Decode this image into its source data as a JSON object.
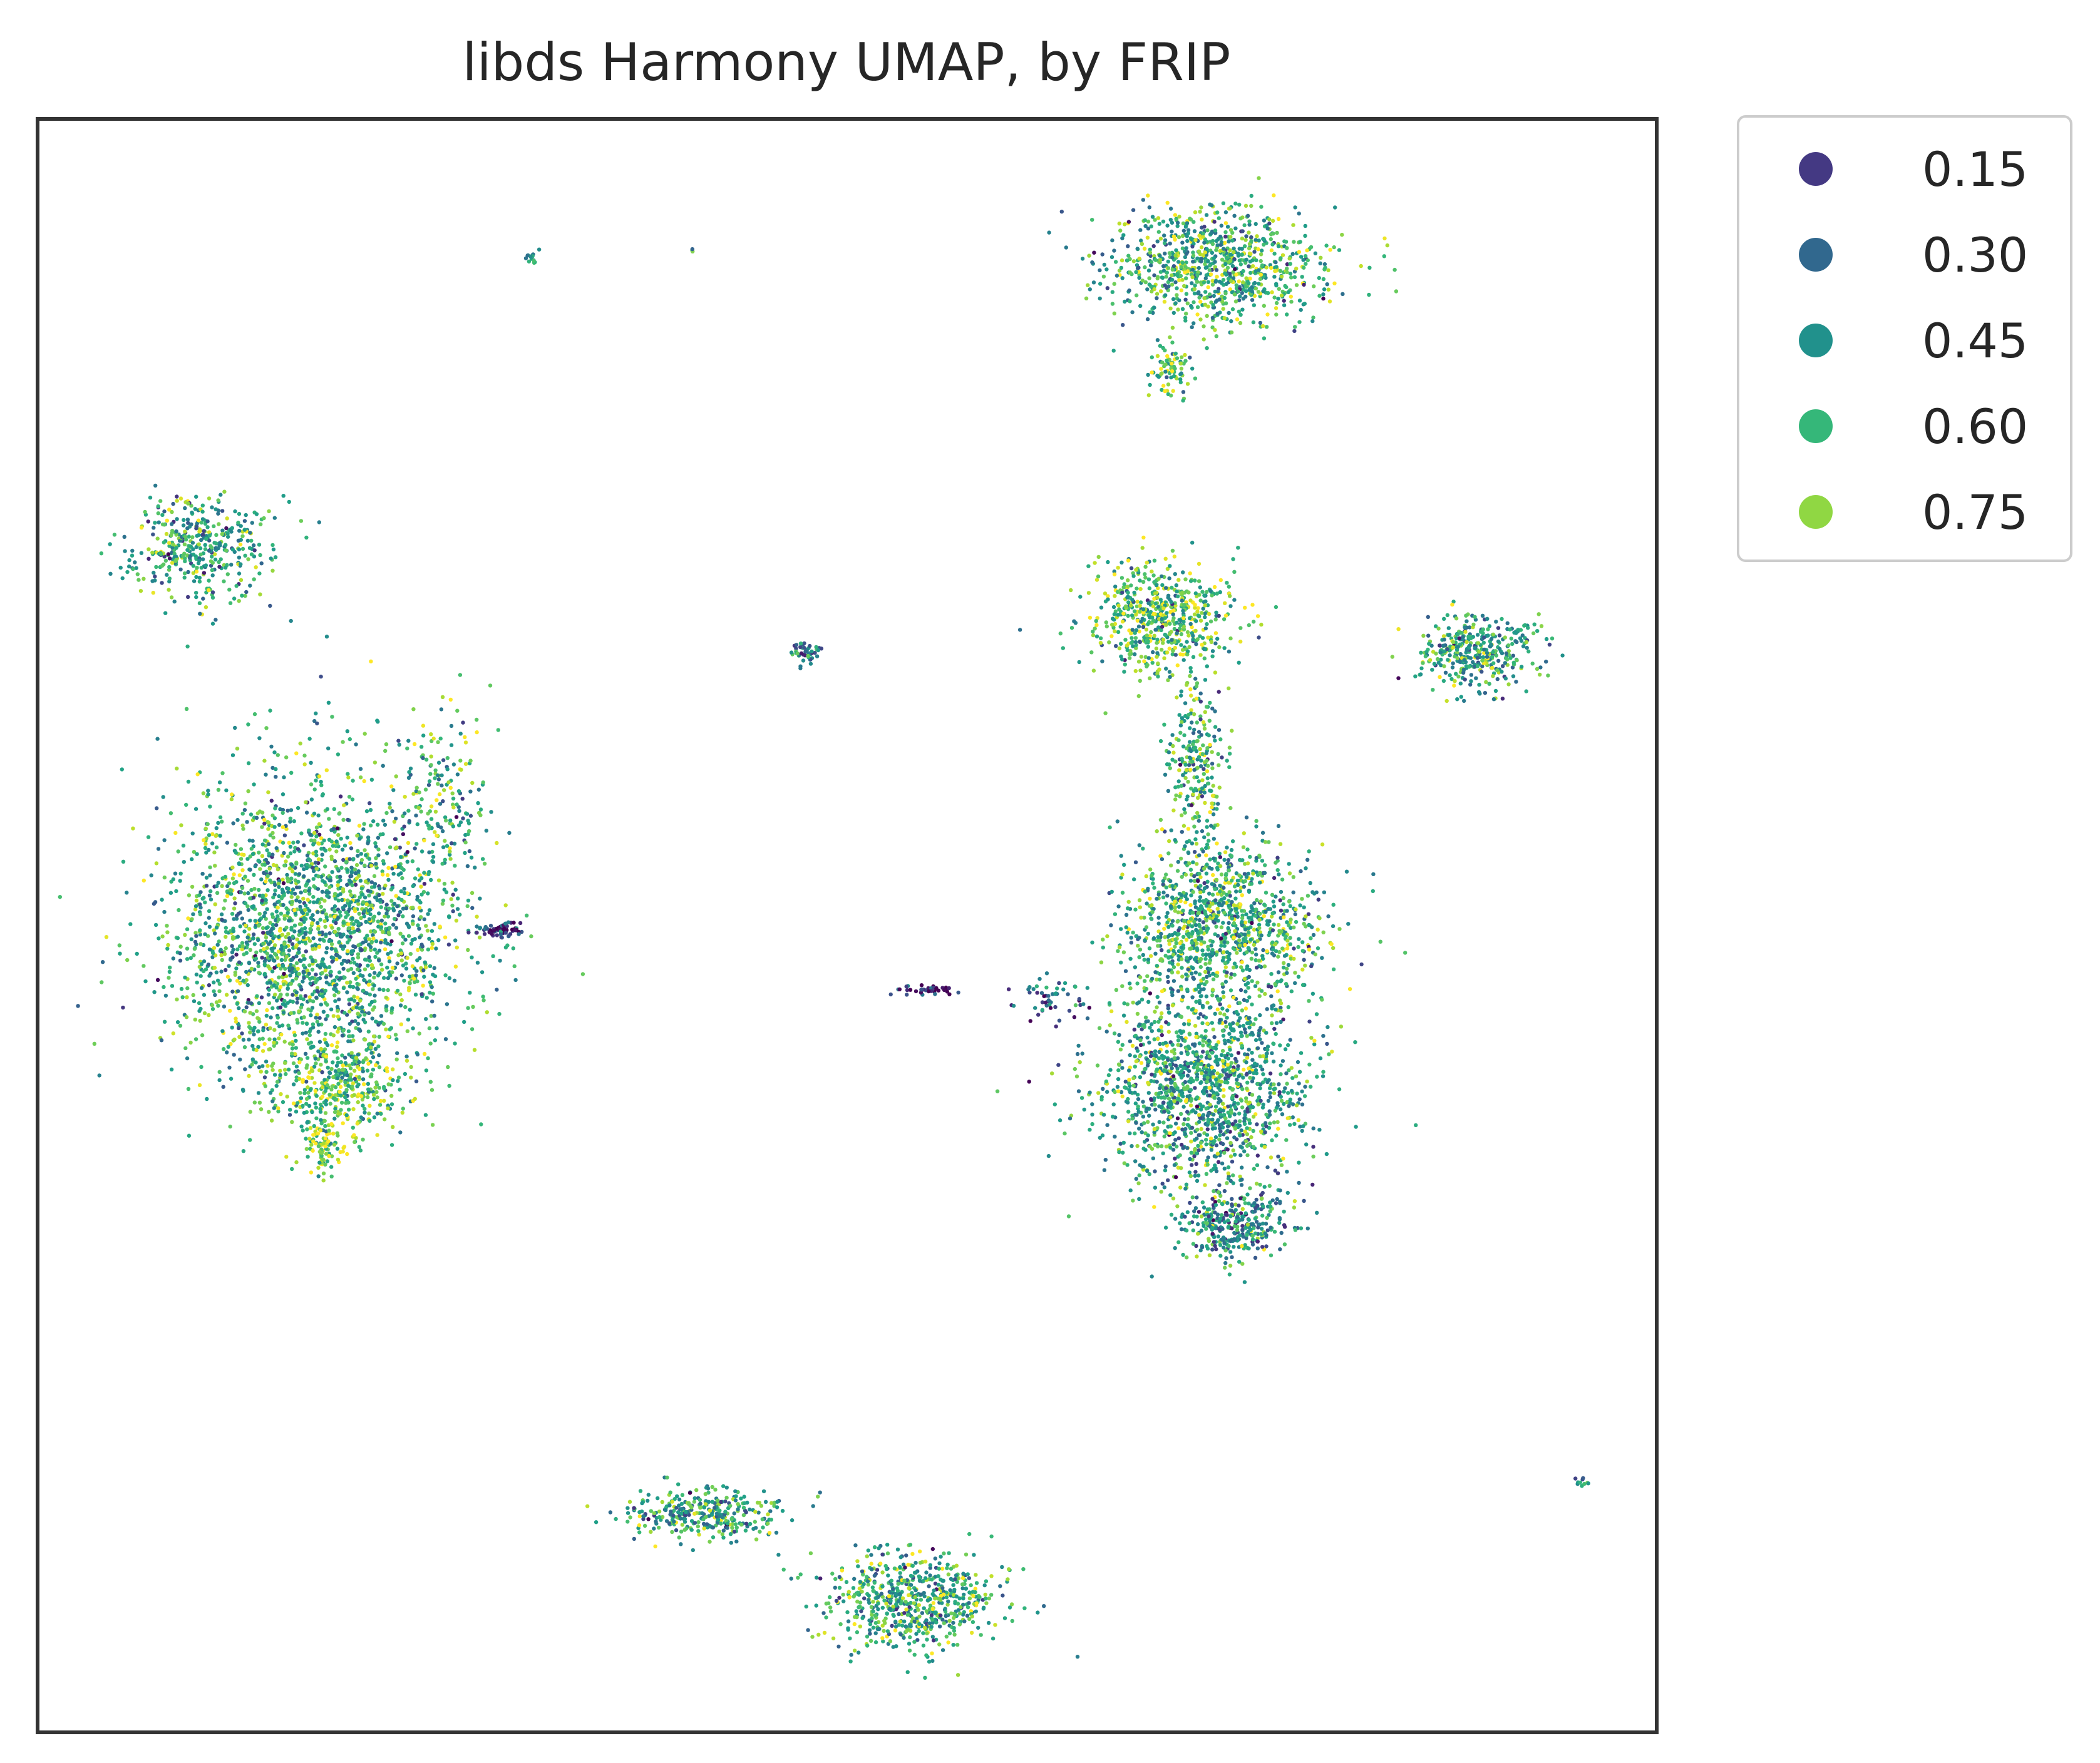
{
  "chart_data": {
    "type": "scatter",
    "title": "libds Harmony UMAP, by FRIP",
    "xlabel": "",
    "ylabel": "",
    "axes_ticks": false,
    "grid": false,
    "legend": {
      "placement": "outside-top-right",
      "entries": [
        {
          "label": "0.15",
          "value": 0.15,
          "color": "#443983"
        },
        {
          "label": "0.30",
          "value": 0.3,
          "color": "#31688e"
        },
        {
          "label": "0.45",
          "value": 0.45,
          "color": "#21918c"
        },
        {
          "label": "0.60",
          "value": 0.6,
          "color": "#35b779"
        },
        {
          "label": "0.75",
          "value": 0.75,
          "color": "#90d743"
        }
      ]
    },
    "colormap": "viridis",
    "color_range": [
      0.05,
      0.85
    ],
    "xlim": [
      0,
      100
    ],
    "ylim": [
      0,
      100
    ],
    "clusters": [
      {
        "cx": 73,
        "cy": 91,
        "rx": 6.0,
        "ry": 3.2,
        "n": 900,
        "frip": 0.55
      },
      {
        "cx": 70,
        "cy": 84.5,
        "rx": 1.2,
        "ry": 1.5,
        "n": 80,
        "frip": 0.62
      },
      {
        "cx": 10,
        "cy": 73.5,
        "rx": 4.0,
        "ry": 2.8,
        "n": 420,
        "frip": 0.52
      },
      {
        "cx": 17,
        "cy": 49.5,
        "rx": 8.0,
        "ry": 8.5,
        "n": 2400,
        "frip": 0.55
      },
      {
        "cx": 18.5,
        "cy": 40,
        "rx": 4.0,
        "ry": 2.8,
        "n": 350,
        "frip": 0.62
      },
      {
        "cx": 17.5,
        "cy": 36,
        "rx": 1.2,
        "ry": 1.5,
        "n": 90,
        "frip": 0.72
      },
      {
        "cx": 25,
        "cy": 58,
        "rx": 2.5,
        "ry": 4.5,
        "n": 150,
        "frip": 0.55
      },
      {
        "cx": 28.5,
        "cy": 49.7,
        "rx": 1.5,
        "ry": 0.4,
        "n": 70,
        "frip": 0.15
      },
      {
        "cx": 47.5,
        "cy": 67,
        "rx": 0.9,
        "ry": 0.6,
        "n": 45,
        "frip": 0.4
      },
      {
        "cx": 55,
        "cy": 46,
        "rx": 1.5,
        "ry": 0.3,
        "n": 40,
        "frip": 0.15
      },
      {
        "cx": 63,
        "cy": 45.5,
        "rx": 2.0,
        "ry": 1.2,
        "n": 50,
        "frip": 0.25
      },
      {
        "cx": 69.5,
        "cy": 69,
        "rx": 4.0,
        "ry": 3.0,
        "n": 600,
        "frip": 0.62
      },
      {
        "cx": 71.5,
        "cy": 60,
        "rx": 1.6,
        "ry": 5.0,
        "n": 250,
        "frip": 0.55
      },
      {
        "cx": 73,
        "cy": 50,
        "rx": 5.5,
        "ry": 4.5,
        "n": 1100,
        "frip": 0.55
      },
      {
        "cx": 72,
        "cy": 40,
        "rx": 6.0,
        "ry": 5.5,
        "n": 1400,
        "frip": 0.52
      },
      {
        "cx": 74,
        "cy": 31.5,
        "rx": 3.0,
        "ry": 2.2,
        "n": 350,
        "frip": 0.45
      },
      {
        "cx": 89,
        "cy": 67,
        "rx": 3.6,
        "ry": 1.9,
        "n": 380,
        "frip": 0.52
      },
      {
        "cx": 41,
        "cy": 13.5,
        "rx": 4.5,
        "ry": 1.5,
        "n": 330,
        "frip": 0.52
      },
      {
        "cx": 54,
        "cy": 8,
        "rx": 5.0,
        "ry": 2.8,
        "n": 650,
        "frip": 0.55
      },
      {
        "cx": 30.5,
        "cy": 91.5,
        "rx": 0.4,
        "ry": 0.5,
        "n": 14,
        "frip": 0.45
      },
      {
        "cx": 40.5,
        "cy": 92,
        "rx": 0.15,
        "ry": 0.15,
        "n": 3,
        "frip": 0.45
      },
      {
        "cx": 95.5,
        "cy": 15.5,
        "rx": 0.4,
        "ry": 0.3,
        "n": 10,
        "frip": 0.45
      }
    ]
  }
}
